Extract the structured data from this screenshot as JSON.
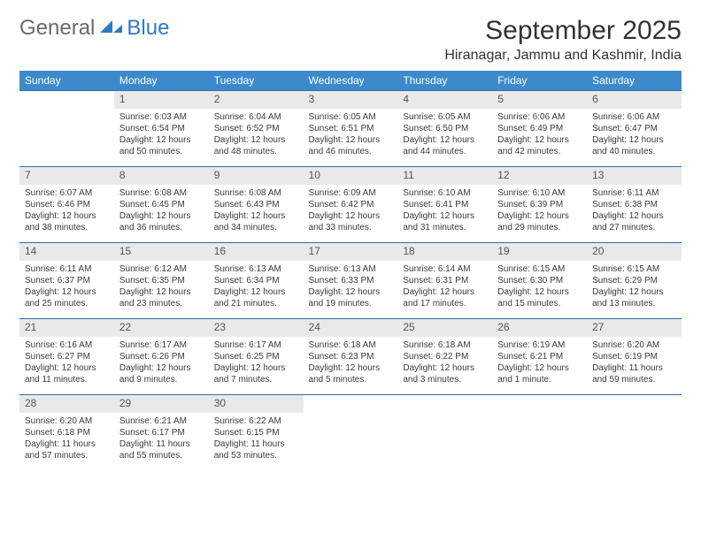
{
  "logo": {
    "text1": "General",
    "text2": "Blue"
  },
  "title": "September 2025",
  "location": "Hiranagar, Jammu and Kashmir, India",
  "colors": {
    "header_bg": "#3c8acb",
    "header_text": "#ffffff",
    "daynum_bg": "#e9e9e9",
    "row_border": "#2f6fa6",
    "logo_gray": "#6a6a6a",
    "logo_blue": "#2f7bbf"
  },
  "weekdays": [
    "Sunday",
    "Monday",
    "Tuesday",
    "Wednesday",
    "Thursday",
    "Friday",
    "Saturday"
  ],
  "weeks": [
    [
      null,
      {
        "n": "1",
        "sr": "6:03 AM",
        "ss": "6:54 PM",
        "dl": "12 hours and 50 minutes."
      },
      {
        "n": "2",
        "sr": "6:04 AM",
        "ss": "6:52 PM",
        "dl": "12 hours and 48 minutes."
      },
      {
        "n": "3",
        "sr": "6:05 AM",
        "ss": "6:51 PM",
        "dl": "12 hours and 46 minutes."
      },
      {
        "n": "4",
        "sr": "6:05 AM",
        "ss": "6:50 PM",
        "dl": "12 hours and 44 minutes."
      },
      {
        "n": "5",
        "sr": "6:06 AM",
        "ss": "6:49 PM",
        "dl": "12 hours and 42 minutes."
      },
      {
        "n": "6",
        "sr": "6:06 AM",
        "ss": "6:47 PM",
        "dl": "12 hours and 40 minutes."
      }
    ],
    [
      {
        "n": "7",
        "sr": "6:07 AM",
        "ss": "6:46 PM",
        "dl": "12 hours and 38 minutes."
      },
      {
        "n": "8",
        "sr": "6:08 AM",
        "ss": "6:45 PM",
        "dl": "12 hours and 36 minutes."
      },
      {
        "n": "9",
        "sr": "6:08 AM",
        "ss": "6:43 PM",
        "dl": "12 hours and 34 minutes."
      },
      {
        "n": "10",
        "sr": "6:09 AM",
        "ss": "6:42 PM",
        "dl": "12 hours and 33 minutes."
      },
      {
        "n": "11",
        "sr": "6:10 AM",
        "ss": "6:41 PM",
        "dl": "12 hours and 31 minutes."
      },
      {
        "n": "12",
        "sr": "6:10 AM",
        "ss": "6:39 PM",
        "dl": "12 hours and 29 minutes."
      },
      {
        "n": "13",
        "sr": "6:11 AM",
        "ss": "6:38 PM",
        "dl": "12 hours and 27 minutes."
      }
    ],
    [
      {
        "n": "14",
        "sr": "6:11 AM",
        "ss": "6:37 PM",
        "dl": "12 hours and 25 minutes."
      },
      {
        "n": "15",
        "sr": "6:12 AM",
        "ss": "6:35 PM",
        "dl": "12 hours and 23 minutes."
      },
      {
        "n": "16",
        "sr": "6:13 AM",
        "ss": "6:34 PM",
        "dl": "12 hours and 21 minutes."
      },
      {
        "n": "17",
        "sr": "6:13 AM",
        "ss": "6:33 PM",
        "dl": "12 hours and 19 minutes."
      },
      {
        "n": "18",
        "sr": "6:14 AM",
        "ss": "6:31 PM",
        "dl": "12 hours and 17 minutes."
      },
      {
        "n": "19",
        "sr": "6:15 AM",
        "ss": "6:30 PM",
        "dl": "12 hours and 15 minutes."
      },
      {
        "n": "20",
        "sr": "6:15 AM",
        "ss": "6:29 PM",
        "dl": "12 hours and 13 minutes."
      }
    ],
    [
      {
        "n": "21",
        "sr": "6:16 AM",
        "ss": "6:27 PM",
        "dl": "12 hours and 11 minutes."
      },
      {
        "n": "22",
        "sr": "6:17 AM",
        "ss": "6:26 PM",
        "dl": "12 hours and 9 minutes."
      },
      {
        "n": "23",
        "sr": "6:17 AM",
        "ss": "6:25 PM",
        "dl": "12 hours and 7 minutes."
      },
      {
        "n": "24",
        "sr": "6:18 AM",
        "ss": "6:23 PM",
        "dl": "12 hours and 5 minutes."
      },
      {
        "n": "25",
        "sr": "6:18 AM",
        "ss": "6:22 PM",
        "dl": "12 hours and 3 minutes."
      },
      {
        "n": "26",
        "sr": "6:19 AM",
        "ss": "6:21 PM",
        "dl": "12 hours and 1 minute."
      },
      {
        "n": "27",
        "sr": "6:20 AM",
        "ss": "6:19 PM",
        "dl": "11 hours and 59 minutes."
      }
    ],
    [
      {
        "n": "28",
        "sr": "6:20 AM",
        "ss": "6:18 PM",
        "dl": "11 hours and 57 minutes."
      },
      {
        "n": "29",
        "sr": "6:21 AM",
        "ss": "6:17 PM",
        "dl": "11 hours and 55 minutes."
      },
      {
        "n": "30",
        "sr": "6:22 AM",
        "ss": "6:15 PM",
        "dl": "11 hours and 53 minutes."
      },
      null,
      null,
      null,
      null
    ]
  ],
  "labels": {
    "sunrise": "Sunrise:",
    "sunset": "Sunset:",
    "daylight": "Daylight:"
  }
}
